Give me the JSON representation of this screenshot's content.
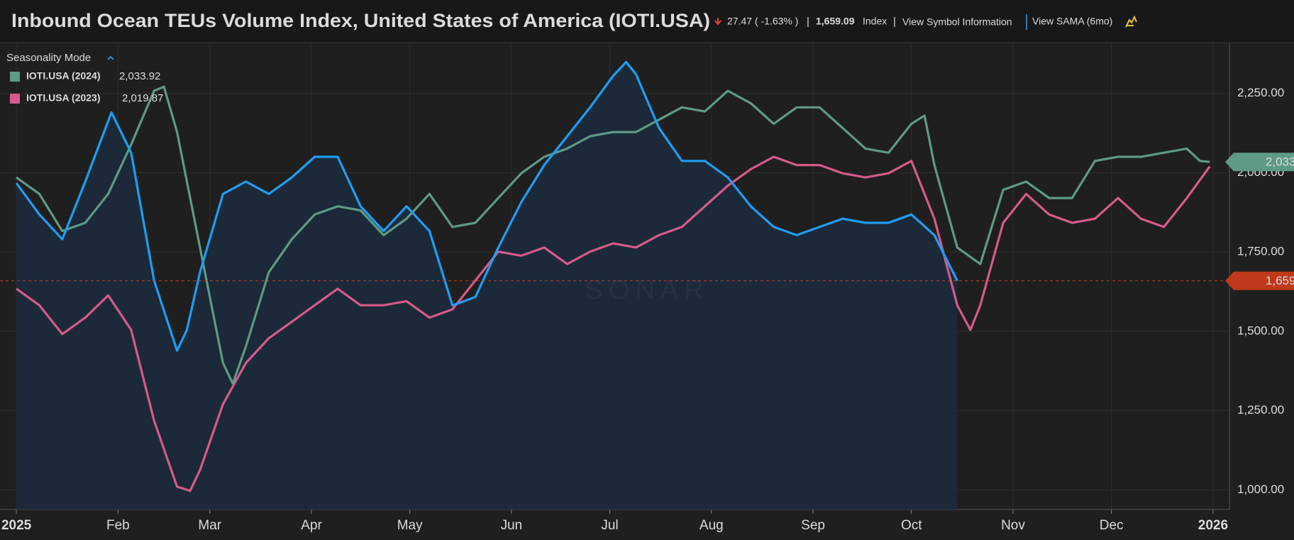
{
  "header": {
    "title": "Inbound Ocean TEUs Volume Index, United States of America (IOTI.USA)",
    "change": "27.47 ( -1.63% )",
    "unit": "Index",
    "link_symbol": "View Symbol Information",
    "link_sama": "View SAMA (6mo)"
  },
  "chart_data": {
    "type": "line",
    "legend_title": "Seasonality Mode",
    "watermark": "SONAR",
    "xlim": [
      -5,
      370
    ],
    "ylim": [
      938,
      2408
    ],
    "xticks": [
      {
        "value": 0,
        "label": "2025"
      },
      {
        "value": 31,
        "label": "Feb"
      },
      {
        "value": 59,
        "label": "Mar"
      },
      {
        "value": 90,
        "label": "Apr"
      },
      {
        "value": 120,
        "label": "May"
      },
      {
        "value": 151,
        "label": "Jun"
      },
      {
        "value": 181,
        "label": "Jul"
      },
      {
        "value": 212,
        "label": "Aug"
      },
      {
        "value": 243,
        "label": "Sep"
      },
      {
        "value": 273,
        "label": "Oct"
      },
      {
        "value": 304,
        "label": "Nov"
      },
      {
        "value": 334,
        "label": "Dec"
      },
      {
        "value": 365,
        "label": "2026"
      }
    ],
    "yticks": [
      {
        "value": 1000,
        "label": "1,000.00"
      },
      {
        "value": 1250,
        "label": "1,250.00"
      },
      {
        "value": 1500,
        "label": "1,500.00"
      },
      {
        "value": 1750,
        "label": "1,750.00"
      },
      {
        "value": 2000,
        "label": "2,000.00"
      },
      {
        "value": 2250,
        "label": "2,250.00"
      }
    ],
    "grid": true,
    "series": [
      {
        "color": "#1e9df2",
        "area": true,
        "last_label": "1,659.09",
        "x": [
          0,
          7,
          14,
          21,
          29,
          35,
          42,
          49,
          52,
          56,
          63,
          70,
          77,
          84,
          91,
          98,
          105,
          112,
          119,
          126,
          133,
          140,
          147,
          154,
          161,
          168,
          175,
          182,
          186,
          189,
          196,
          203,
          210,
          217,
          224,
          231,
          238,
          245,
          252,
          259,
          266,
          273,
          280,
          287
        ],
        "values": [
          1967,
          1868,
          1790,
          1972,
          2190,
          2063,
          1660,
          1439,
          1504,
          1686,
          1933,
          1972,
          1933,
          1985,
          2050,
          2050,
          1894,
          1816,
          1894,
          1816,
          1582,
          1608,
          1764,
          1907,
          2024,
          2115,
          2206,
          2305,
          2349,
          2310,
          2141,
          2037,
          2037,
          1985,
          1894,
          1829,
          1803,
          1829,
          1855,
          1842,
          1842,
          1868,
          1803,
          1659.09
        ]
      },
      {
        "name": "IOTI.USA (2024)",
        "color": "#5e9a84",
        "last_label": "2,033.92",
        "x": [
          0,
          7,
          14,
          21,
          28,
          35,
          42,
          45,
          49,
          56,
          63,
          66,
          70,
          77,
          84,
          91,
          98,
          105,
          112,
          119,
          126,
          133,
          140,
          147,
          154,
          161,
          168,
          175,
          182,
          189,
          196,
          203,
          210,
          217,
          224,
          231,
          238,
          245,
          252,
          259,
          266,
          273,
          277,
          280,
          287,
          294,
          301,
          308,
          315,
          322,
          329,
          336,
          343,
          350,
          357,
          361,
          364
        ],
        "values": [
          1985,
          1933,
          1816,
          1842,
          1933,
          2089,
          2258,
          2271,
          2128,
          1764,
          1400,
          1335,
          1452,
          1686,
          1790,
          1868,
          1894,
          1881,
          1803,
          1855,
          1933,
          1829,
          1842,
          1920,
          1998,
          2050,
          2076,
          2115,
          2128,
          2128,
          2167,
          2206,
          2193,
          2258,
          2219,
          2154,
          2206,
          2206,
          2141,
          2076,
          2063,
          2154,
          2180,
          2024,
          1764,
          1712,
          1946,
          1972,
          1920,
          1920,
          2037,
          2050,
          2050,
          2063,
          2076,
          2037,
          2033.92
        ]
      },
      {
        "name": "IOTI.USA (2023)",
        "color": "#d65a8b",
        "last_label": "2,019.87",
        "x": [
          0,
          7,
          14,
          21,
          28,
          35,
          42,
          49,
          53,
          56,
          63,
          70,
          77,
          84,
          91,
          98,
          105,
          112,
          119,
          126,
          133,
          140,
          147,
          154,
          161,
          168,
          175,
          182,
          189,
          196,
          203,
          210,
          217,
          224,
          231,
          238,
          245,
          252,
          259,
          266,
          273,
          280,
          287,
          291,
          294,
          301,
          308,
          315,
          322,
          329,
          336,
          343,
          350,
          357,
          364
        ],
        "values": [
          1634,
          1582,
          1491,
          1543,
          1613,
          1504,
          1218,
          1010,
          997,
          1062,
          1270,
          1400,
          1478,
          1530,
          1582,
          1634,
          1582,
          1582,
          1595,
          1543,
          1569,
          1660,
          1751,
          1738,
          1764,
          1712,
          1751,
          1777,
          1764,
          1803,
          1829,
          1894,
          1959,
          2011,
          2050,
          2024,
          2024,
          1998,
          1985,
          1998,
          2037,
          1855,
          1582,
          1504,
          1582,
          1842,
          1933,
          1868,
          1842,
          1855,
          1920,
          1855,
          1829,
          1920,
          2019.87
        ]
      }
    ]
  }
}
